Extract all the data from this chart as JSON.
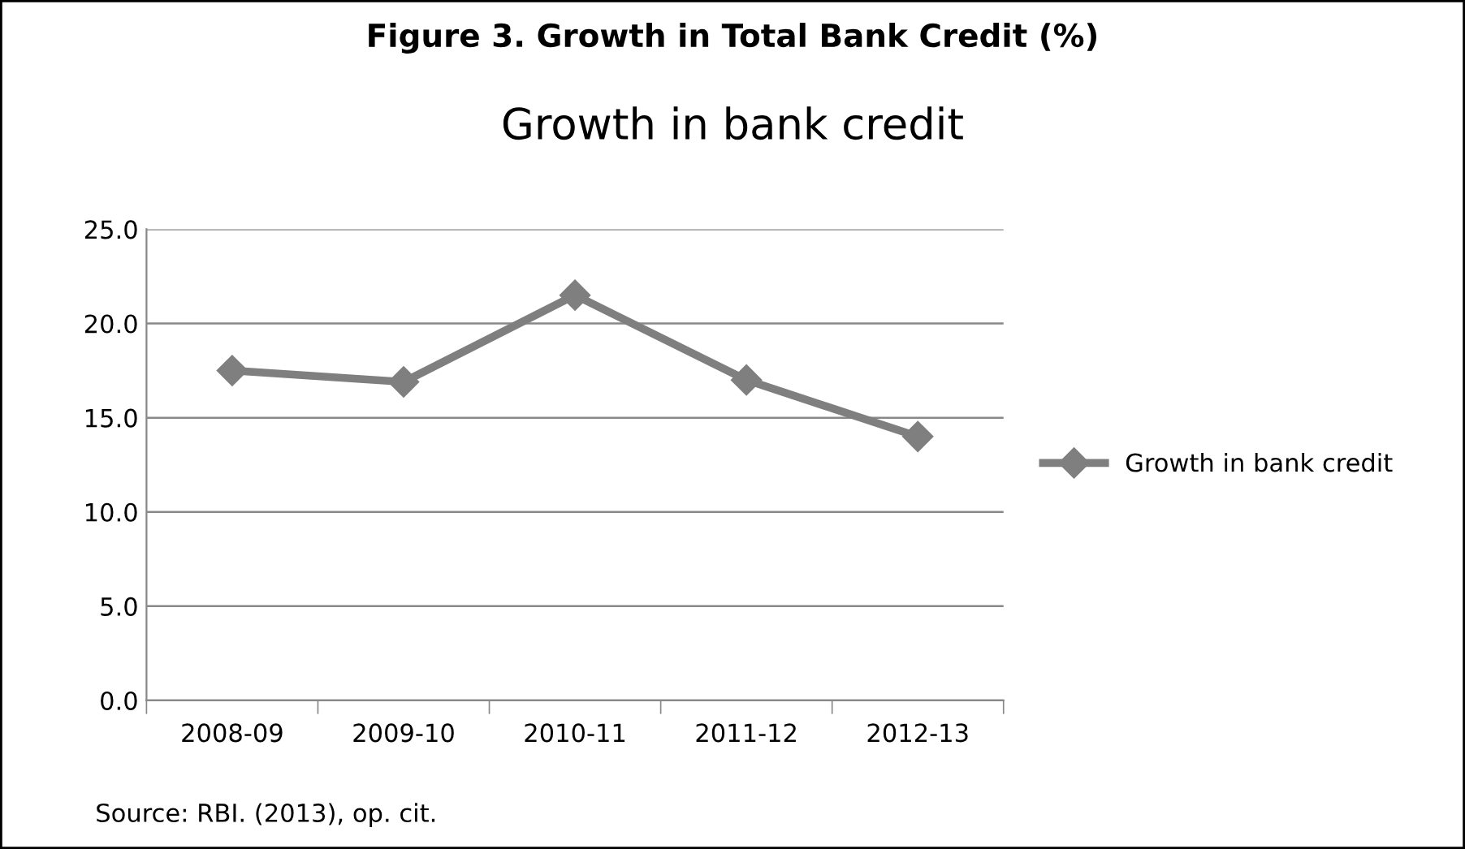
{
  "chart_data": {
    "type": "line",
    "title": "Figure 3. Growth in Total Bank Credit (%)",
    "subtitle": "Growth in bank credit",
    "categories": [
      "2008-09",
      "2009-10",
      "2010-11",
      "2011-12",
      "2012-13"
    ],
    "series": [
      {
        "name": "Growth in bank credit",
        "color": "#7f7f7f",
        "values": [
          17.5,
          16.9,
          21.5,
          17.0,
          14.0
        ]
      }
    ],
    "ylim": [
      0,
      25
    ],
    "yticks": [
      {
        "value": 0,
        "label": "0.0"
      },
      {
        "value": 5,
        "label": "5.0"
      },
      {
        "value": 10,
        "label": "10.0"
      },
      {
        "value": 15,
        "label": "15.0"
      },
      {
        "value": 20,
        "label": "20.0"
      },
      {
        "value": 25,
        "label": "25.0"
      }
    ],
    "grid": "y",
    "legend": "right",
    "marker": "diamond",
    "line_style": "solid",
    "annotations": [
      "Source: RBI. (2013), op. cit."
    ]
  }
}
